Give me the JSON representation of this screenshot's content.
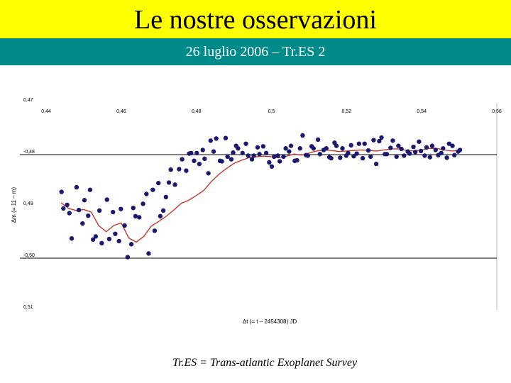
{
  "header": {
    "title": "Le nostre osservazioni",
    "subtitle": "26 luglio 2006 – Tr.ES 2"
  },
  "caption": "Tr.ES = Trans-atlantic Exoplanet Survey",
  "colors": {
    "title_bar": "#ffff00",
    "subtitle_bar": "#008b8b",
    "points": "#1a1a6e",
    "fit_line": "#c0392b"
  },
  "chart_data": {
    "type": "scatter",
    "title": "",
    "xlabel": "Δt (= t – 2454308) JD",
    "ylabel": "Δm (= 11 – m)",
    "xlim": [
      0.44,
      0.56
    ],
    "ylim": [
      -0.51,
      -0.47
    ],
    "y_reversed": true,
    "x_tick_labels": [
      "0,44",
      "0,46",
      "0,48",
      "0,5",
      "0,52",
      "0,54",
      "0,56"
    ],
    "x_tick_values": [
      0.44,
      0.46,
      0.48,
      0.5,
      0.52,
      0.54,
      0.56
    ],
    "y_tick_labels": [
      "0,47",
      "-0,48",
      "0,49",
      "-0,50",
      "0,51"
    ],
    "y_tick_values": [
      -0.47,
      -0.48,
      -0.49,
      -0.5,
      -0.51
    ],
    "grid": "horizontal",
    "series": [
      {
        "kind": "points",
        "x": [
          0.4441,
          0.4446,
          0.4456,
          0.4462,
          0.4468,
          0.4481,
          0.4487,
          0.4497,
          0.4502,
          0.4512,
          0.4517,
          0.4525,
          0.4532,
          0.4542,
          0.4548,
          0.4562,
          0.4568,
          0.4578,
          0.4584,
          0.4594,
          0.4599,
          0.4609,
          0.4617,
          0.4627,
          0.4632,
          0.4638,
          0.4648,
          0.4658,
          0.4667,
          0.4673,
          0.4684,
          0.4689,
          0.4699,
          0.4704,
          0.4712,
          0.4719,
          0.4727,
          0.4732,
          0.4743,
          0.4754,
          0.4762,
          0.4773,
          0.4781,
          0.4786,
          0.4794,
          0.4801,
          0.4808,
          0.4817,
          0.4822,
          0.4832,
          0.4838,
          0.4846,
          0.4853,
          0.4863,
          0.4868,
          0.4878,
          0.4883,
          0.4893,
          0.4898,
          0.4906,
          0.4911,
          0.4923,
          0.4932,
          0.4938,
          0.4948,
          0.4953,
          0.4963,
          0.4968,
          0.4978,
          0.4986,
          0.4994,
          0.5001,
          0.5007,
          0.5017,
          0.5022,
          0.5032,
          0.5038,
          0.5047,
          0.5052,
          0.5062,
          0.5068,
          0.5076,
          0.5083,
          0.5092,
          0.5097,
          0.5107,
          0.5112,
          0.5124,
          0.5129,
          0.5139,
          0.5146,
          0.5154,
          0.5159,
          0.5168,
          0.5173,
          0.5183,
          0.5189,
          0.5199,
          0.5204,
          0.5212,
          0.5219,
          0.5227,
          0.5233,
          0.5243,
          0.5248,
          0.5258,
          0.5264,
          0.5272,
          0.5279,
          0.5287,
          0.5293,
          0.5302,
          0.5307,
          0.5317,
          0.5323,
          0.5333,
          0.5338,
          0.5346,
          0.5353,
          0.5363,
          0.5368,
          0.5378,
          0.5383,
          0.5393,
          0.5398,
          0.5408,
          0.5413,
          0.5422,
          0.5428,
          0.5437,
          0.5444,
          0.5452,
          0.5457,
          0.5467,
          0.5473,
          0.5482,
          0.5487,
          0.5497,
          0.5502
        ],
        "y": [
          -0.4872,
          -0.4904,
          -0.4897,
          -0.4913,
          -0.4962,
          -0.4863,
          -0.4907,
          -0.4933,
          -0.4888,
          -0.4918,
          -0.4868,
          -0.4964,
          -0.4958,
          -0.4908,
          -0.4971,
          -0.4887,
          -0.4963,
          -0.4911,
          -0.4953,
          -0.4967,
          -0.4905,
          -0.4937,
          -0.4998,
          -0.4973,
          -0.4903,
          -0.4919,
          -0.4921,
          -0.4895,
          -0.4876,
          -0.4991,
          -0.4868,
          -0.4947,
          -0.4855,
          -0.4919,
          -0.4908,
          -0.4882,
          -0.4854,
          -0.4829,
          -0.4858,
          -0.4828,
          -0.4809,
          -0.4831,
          -0.4798,
          -0.4797,
          -0.4812,
          -0.4797,
          -0.4818,
          -0.4791,
          -0.4808,
          -0.4836,
          -0.4773,
          -0.4794,
          -0.4769,
          -0.4812,
          -0.4813,
          -0.4768,
          -0.4804,
          -0.4809,
          -0.4796,
          -0.4783,
          -0.4788,
          -0.4797,
          -0.4779,
          -0.4802,
          -0.4809,
          -0.4802,
          -0.4786,
          -0.4799,
          -0.4784,
          -0.4797,
          -0.4815,
          -0.4823,
          -0.4804,
          -0.4802,
          -0.4813,
          -0.4804,
          -0.4788,
          -0.4794,
          -0.4783,
          -0.4812,
          -0.4811,
          -0.4788,
          -0.4763,
          -0.4801,
          -0.4802,
          -0.4784,
          -0.4788,
          -0.4771,
          -0.4799,
          -0.4791,
          -0.4788,
          -0.4805,
          -0.4807,
          -0.4777,
          -0.4783,
          -0.4806,
          -0.4788,
          -0.4802,
          -0.4797,
          -0.4782,
          -0.4803,
          -0.4798,
          -0.4779,
          -0.4807,
          -0.4779,
          -0.4792,
          -0.4804,
          -0.4772,
          -0.4818,
          -0.4774,
          -0.4767,
          -0.4799,
          -0.4799,
          -0.4787,
          -0.4773,
          -0.4804,
          -0.4783,
          -0.4789,
          -0.4802,
          -0.4794,
          -0.4798,
          -0.4785,
          -0.4795,
          -0.4775,
          -0.4793,
          -0.4802,
          -0.4786,
          -0.4805,
          -0.4783,
          -0.4791,
          -0.4801,
          -0.4797,
          -0.4788,
          -0.4806,
          -0.4779,
          -0.4783,
          -0.4801,
          -0.4794,
          -0.4791
        ]
      },
      {
        "kind": "line",
        "x": [
          0.444,
          0.446,
          0.448,
          0.45,
          0.452,
          0.454,
          0.456,
          0.458,
          0.46,
          0.462,
          0.464,
          0.466,
          0.468,
          0.47,
          0.472,
          0.474,
          0.476,
          0.478,
          0.48,
          0.482,
          0.484,
          0.486,
          0.488,
          0.49,
          0.492,
          0.494,
          0.496,
          0.498,
          0.5,
          0.502,
          0.504,
          0.506,
          0.508,
          0.51,
          0.512,
          0.514,
          0.516,
          0.518,
          0.52,
          0.522,
          0.524,
          0.526,
          0.528,
          0.53,
          0.532,
          0.534,
          0.536,
          0.538,
          0.54,
          0.542,
          0.544,
          0.546,
          0.548,
          0.55
        ],
        "y": [
          -0.4893,
          -0.4904,
          -0.4908,
          -0.4906,
          -0.4911,
          -0.4937,
          -0.4949,
          -0.4937,
          -0.4932,
          -0.4961,
          -0.4969,
          -0.4958,
          -0.4938,
          -0.4929,
          -0.4919,
          -0.4907,
          -0.4894,
          -0.4888,
          -0.4879,
          -0.4869,
          -0.4852,
          -0.4838,
          -0.4827,
          -0.4817,
          -0.4811,
          -0.4806,
          -0.4804,
          -0.4803,
          -0.4804,
          -0.4806,
          -0.4803,
          -0.4799,
          -0.4801,
          -0.4797,
          -0.4793,
          -0.4791,
          -0.4792,
          -0.4794,
          -0.4793,
          -0.4792,
          -0.4791,
          -0.4792,
          -0.4793,
          -0.4791,
          -0.4789,
          -0.4789,
          -0.4792,
          -0.4793,
          -0.4791,
          -0.4788,
          -0.4788,
          -0.4791,
          -0.4793,
          -0.4792
        ]
      }
    ]
  }
}
